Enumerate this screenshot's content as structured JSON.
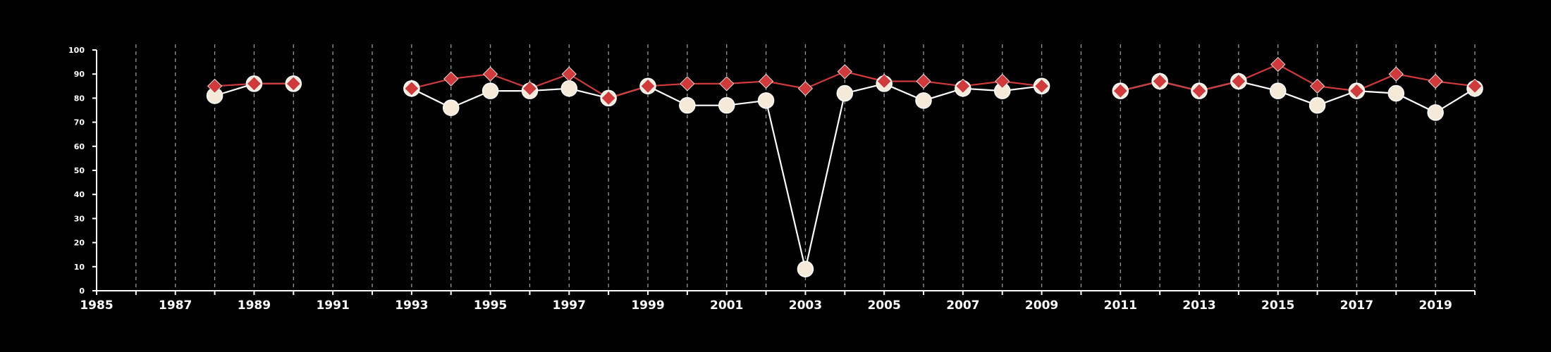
{
  "chart_data": {
    "type": "line",
    "x_start": 1985,
    "x_end": 2020,
    "xlim": [
      1985,
      2020
    ],
    "ylim": [
      0,
      100
    ],
    "x_tick_labels": [
      "1985",
      "1987",
      "1989",
      "1991",
      "1993",
      "1995",
      "1997",
      "1999",
      "2001",
      "2003",
      "2005",
      "2007",
      "2009",
      "2011",
      "2013",
      "2015",
      "2017",
      "2019"
    ],
    "y_tick_labels": [
      "0",
      "10",
      "20",
      "30",
      "40",
      "50",
      "60",
      "70",
      "80",
      "90",
      "100"
    ],
    "grid": "vertical dashed lines at each year",
    "series": [
      {
        "marker": "circle",
        "color": "#f5ead8",
        "line_color": "#ffffff",
        "points": [
          [
            1988,
            81
          ],
          [
            1989,
            86
          ],
          [
            1990,
            86
          ],
          [
            1993,
            84
          ],
          [
            1994,
            76
          ],
          [
            1995,
            83
          ],
          [
            1996,
            83
          ],
          [
            1997,
            84
          ],
          [
            1998,
            80
          ],
          [
            1999,
            85
          ],
          [
            2000,
            77
          ],
          [
            2001,
            77
          ],
          [
            2002,
            79
          ],
          [
            2003,
            9
          ],
          [
            2004,
            82
          ],
          [
            2005,
            86
          ],
          [
            2006,
            79
          ],
          [
            2007,
            84
          ],
          [
            2008,
            83
          ],
          [
            2009,
            85
          ],
          [
            2011,
            83
          ],
          [
            2012,
            87
          ],
          [
            2013,
            83
          ],
          [
            2014,
            87
          ],
          [
            2015,
            83
          ],
          [
            2016,
            77
          ],
          [
            2017,
            83
          ],
          [
            2018,
            82
          ],
          [
            2019,
            74
          ],
          [
            2020,
            84
          ]
        ]
      },
      {
        "marker": "diamond",
        "color": "#d13a3a",
        "line_color": "#d13a3a",
        "points": [
          [
            1988,
            85
          ],
          [
            1989,
            86
          ],
          [
            1990,
            86
          ],
          [
            1993,
            84
          ],
          [
            1994,
            88
          ],
          [
            1995,
            90
          ],
          [
            1996,
            84
          ],
          [
            1997,
            90
          ],
          [
            1998,
            80
          ],
          [
            1999,
            85
          ],
          [
            2000,
            86
          ],
          [
            2001,
            86
          ],
          [
            2002,
            87
          ],
          [
            2003,
            84
          ],
          [
            2004,
            91
          ],
          [
            2005,
            87
          ],
          [
            2006,
            87
          ],
          [
            2007,
            85
          ],
          [
            2008,
            87
          ],
          [
            2009,
            85
          ],
          [
            2011,
            83
          ],
          [
            2012,
            87
          ],
          [
            2013,
            83
          ],
          [
            2014,
            87
          ],
          [
            2015,
            94
          ],
          [
            2016,
            85
          ],
          [
            2017,
            83
          ],
          [
            2018,
            90
          ],
          [
            2019,
            87
          ],
          [
            2020,
            85
          ]
        ]
      }
    ]
  }
}
